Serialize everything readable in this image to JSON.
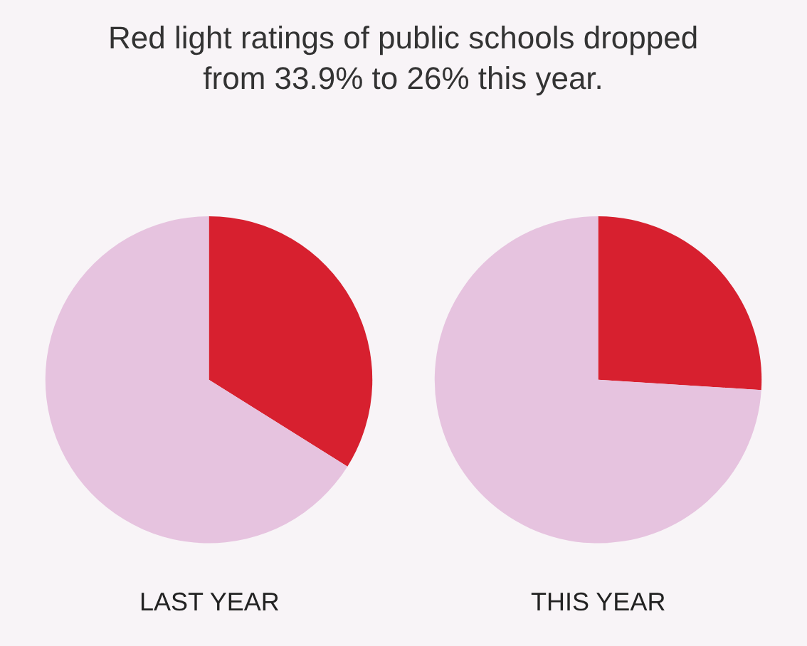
{
  "chart_data": [
    {
      "type": "pie",
      "title": "Red light ratings of public schools dropped\nfrom 33.9% to 26% this year.",
      "xlabel": "LAST YEAR",
      "categories": [
        null,
        null
      ],
      "values": [
        33.9,
        66.1
      ],
      "colors": [
        "#d7202f",
        "#e6c3df"
      ],
      "legend": false
    },
    {
      "type": "pie",
      "xlabel": "THIS YEAR",
      "categories": [
        null,
        null
      ],
      "values": [
        26,
        74
      ],
      "colors": [
        "#d7202f",
        "#e6c3df"
      ],
      "legend": false
    }
  ]
}
